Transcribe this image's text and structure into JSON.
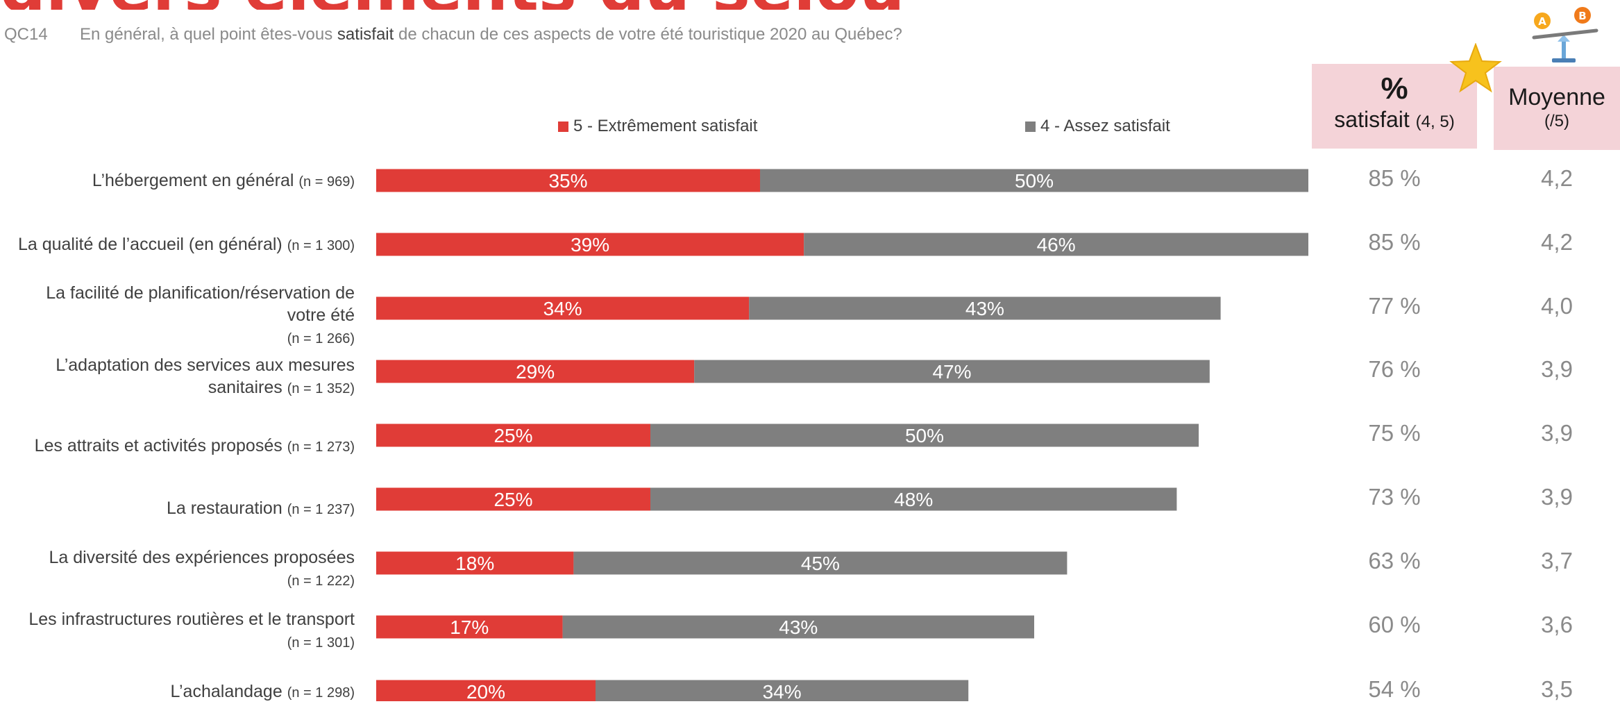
{
  "title": "divers éléments du séjour",
  "question": {
    "code": "QC14",
    "before": "En général, à quel point êtes-vous ",
    "bold": "satisfait",
    "after": " de chacun de ces aspects de votre été touristique 2020 au Québec?"
  },
  "colors": {
    "s5": "#e03c37",
    "s4": "#7f7f7f",
    "header_bg": "#f4d3d8",
    "star": "#f7c21d"
  },
  "legend": {
    "s5": "5 - Extrêmement satisfait",
    "s4": "4 - Assez satisfait"
  },
  "headers": {
    "pct_symbol": "%",
    "pct_label": "satisfait",
    "pct_note": "(4, 5)",
    "moy_label": "Moyenne",
    "moy_note": "(/5)"
  },
  "icons": {
    "star": "star-icon",
    "scale": "balance-scale-icon",
    "scale_a": "A",
    "scale_b": "B"
  },
  "chart_data": {
    "type": "bar",
    "orientation": "horizontal",
    "stacked": true,
    "title": "",
    "categories": [
      {
        "label": "L’hébergement en général",
        "n": "(n = 969)"
      },
      {
        "label": "La qualité de l’accueil (en général)",
        "n": "(n = 1 300)"
      },
      {
        "label": "La facilité de planification/réservation de votre été",
        "n": "(n = 1 266)"
      },
      {
        "label": "L’adaptation des services aux mesures sanitaires",
        "n": "(n = 1 352)"
      },
      {
        "label": "Les attraits et activités proposés",
        "n": "(n = 1 273)"
      },
      {
        "label": "La restauration",
        "n": "(n = 1 237)"
      },
      {
        "label": "La diversité des expériences proposées",
        "n": "(n = 1 222)"
      },
      {
        "label": "Les infrastructures routières et le transport",
        "n": "(n = 1 301)"
      },
      {
        "label": "L’achalandage",
        "n": "(n = 1 298)"
      }
    ],
    "series": [
      {
        "name": "5 - Extrêmement satisfait",
        "values": [
          35,
          39,
          34,
          29,
          25,
          25,
          18,
          17,
          20
        ],
        "labels": [
          "35%",
          "39%",
          "34%",
          "29%",
          "25%",
          "25%",
          "18%",
          "17%",
          "20%"
        ]
      },
      {
        "name": "4 - Assez satisfait",
        "values": [
          50,
          46,
          43,
          47,
          50,
          48,
          45,
          43,
          34
        ],
        "labels": [
          "50%",
          "46%",
          "43%",
          "47%",
          "50%",
          "48%",
          "45%",
          "43%",
          "34%"
        ]
      }
    ],
    "xlim": [
      0,
      85
    ],
    "legend_position": "top",
    "grid": false,
    "pct_satisfied": [
      "85 %",
      "85 %",
      "77 %",
      "76 %",
      "75 %",
      "73 %",
      "63 %",
      "60 %",
      "54 %"
    ],
    "mean": [
      "4,2",
      "4,2",
      "4,0",
      "3,9",
      "3,9",
      "3,9",
      "3,7",
      "3,6",
      "3,5"
    ]
  }
}
